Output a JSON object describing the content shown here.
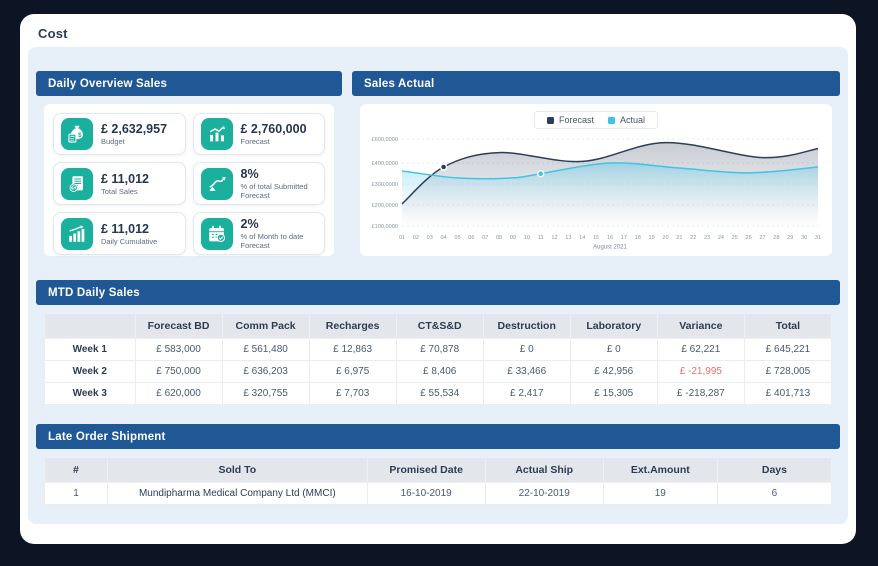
{
  "window": {
    "title": "Cost"
  },
  "panels": {
    "daily_overview": {
      "title": "Daily Overview Sales",
      "kpis": [
        {
          "icon": "money-bag-calculator-icon",
          "value": "£ 2,632,957",
          "label": "Budget"
        },
        {
          "icon": "bar-chart-up-icon",
          "value": "£ 2,760,000",
          "label": "Forecast"
        },
        {
          "icon": "invoice-coin-icon",
          "value": "£ 11,012",
          "label": "Total Sales"
        },
        {
          "icon": "trend-arrow-icon",
          "value": "8%",
          "label": "% of total Submitted Forecast"
        },
        {
          "icon": "cumulative-bars-icon",
          "value": "£ 11,012",
          "label": "Daily Cumulative"
        },
        {
          "icon": "calendar-check-icon",
          "value": "2%",
          "label": "% of Month to date Forecast"
        }
      ]
    },
    "sales_actual": {
      "title": "Sales Actual"
    },
    "mtd": {
      "title": "MTD Daily Sales",
      "columns": [
        "",
        "Forecast BD",
        "Comm Pack",
        "Recharges",
        "CT&S&D",
        "Destruction",
        "Laboratory",
        "Variance",
        "Total"
      ],
      "rows": [
        {
          "label": "Week 1",
          "values": [
            "£ 583,000",
            "£ 561,480",
            "£ 12,863",
            "£ 70,878",
            "£ 0",
            "£ 0",
            "£ 62,221",
            "£ 645,221"
          ],
          "negative": []
        },
        {
          "label": "Week 2",
          "values": [
            "£ 750,000",
            "£ 636,203",
            "£ 6,975",
            "£ 8,406",
            "£ 33,466",
            "£ 42,956",
            "£ -21,995",
            "£ 728,005"
          ],
          "negative": [
            6
          ]
        },
        {
          "label": "Week 3",
          "values": [
            "£ 620,000",
            "£ 320,755",
            "£ 7,703",
            "£ 55,534",
            "£ 2,417",
            "£ 15,305",
            "£ -218,287",
            "£ 401,713"
          ],
          "negative": []
        }
      ]
    },
    "late_orders": {
      "title": "Late Order Shipment",
      "columns": [
        "#",
        "Sold To",
        "Promised Date",
        "Actual Ship",
        "Ext.Amount",
        "Days"
      ],
      "rows": [
        [
          "1",
          "Mundipharma Medical Company Ltd (MMCI)",
          "16-10-2019",
          "22-10-2019",
          "19",
          "6"
        ]
      ]
    }
  },
  "chart_data": {
    "type": "line",
    "title": "Sales Actual",
    "xlabel": "August 2021",
    "x": [
      "01",
      "02",
      "03",
      "04",
      "05",
      "06",
      "07",
      "08",
      "09",
      "10",
      "11",
      "12",
      "13",
      "14",
      "15",
      "16",
      "17",
      "18",
      "19",
      "20",
      "21",
      "22",
      "23",
      "24",
      "25",
      "26",
      "27",
      "28",
      "29",
      "30",
      "31"
    ],
    "y_ticks": [
      "£600,0000",
      "£400,0000",
      "£300,0000",
      "£200,0000",
      "£100,0000"
    ],
    "legend_position": "top-center",
    "grid": "horizontal-dashed",
    "series": [
      {
        "name": "Forecast",
        "color": "#2c3e5a",
        "fill": "gray",
        "marker_day": 4,
        "points": [
          [
            1,
            205000
          ],
          [
            4,
            381000
          ],
          [
            8,
            487000
          ],
          [
            14,
            413000
          ],
          [
            20,
            570000
          ],
          [
            27,
            445000
          ],
          [
            31,
            520000
          ]
        ]
      },
      {
        "name": "Actual",
        "color": "#41c4e3",
        "fill": "blue",
        "marker_day": 11,
        "points": [
          [
            1,
            362000
          ],
          [
            5,
            329000
          ],
          [
            9,
            329000
          ],
          [
            11,
            349000
          ],
          [
            16,
            400000
          ],
          [
            21,
            376000
          ],
          [
            26,
            353000
          ],
          [
            31,
            381000
          ]
        ]
      }
    ]
  },
  "colors": {
    "accent_teal": "#1ab09d",
    "panel_header_blue": "#1f5894",
    "negative_red": "#de736f",
    "forecast_line": "#2c3e5a",
    "actual_line": "#41c4e3"
  }
}
